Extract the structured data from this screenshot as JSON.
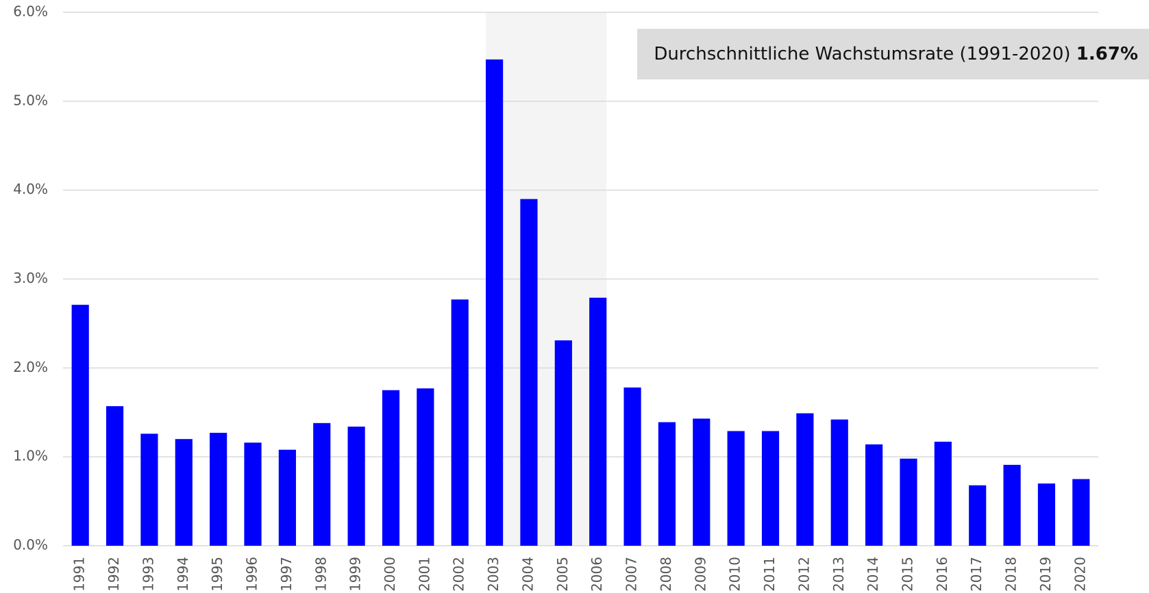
{
  "chart_data": {
    "type": "bar",
    "categories": [
      "1991",
      "1992",
      "1993",
      "1994",
      "1995",
      "1996",
      "1997",
      "1998",
      "1999",
      "2000",
      "2001",
      "2002",
      "2003",
      "2004",
      "2005",
      "2006",
      "2007",
      "2008",
      "2009",
      "2010",
      "2011",
      "2012",
      "2013",
      "2014",
      "2015",
      "2016",
      "2017",
      "2018",
      "2019",
      "2020"
    ],
    "values": [
      2.71,
      1.57,
      1.26,
      1.2,
      1.27,
      1.16,
      1.08,
      1.38,
      1.34,
      1.75,
      1.77,
      2.77,
      5.47,
      3.9,
      2.31,
      2.79,
      1.78,
      1.39,
      1.43,
      1.29,
      1.29,
      1.49,
      1.42,
      1.14,
      0.98,
      1.17,
      0.68,
      0.91,
      0.7,
      0.75
    ],
    "color": "#0000ff",
    "ylim": [
      0,
      6
    ],
    "yticks": [
      {
        "value": 0,
        "label": "0.0%"
      },
      {
        "value": 1,
        "label": "1.0%"
      },
      {
        "value": 2,
        "label": "2.0%"
      },
      {
        "value": 3,
        "label": "3.0%"
      },
      {
        "value": 4,
        "label": "4.0%"
      },
      {
        "value": 5,
        "label": "5.0%"
      },
      {
        "value": 6,
        "label": "6.0%"
      }
    ],
    "grid": true,
    "highlight": [
      "2003",
      "2006"
    ],
    "annotation": "Durchschnittliche Wachstumsrate (1991-2020)",
    "annotation_value": "1.67%"
  }
}
